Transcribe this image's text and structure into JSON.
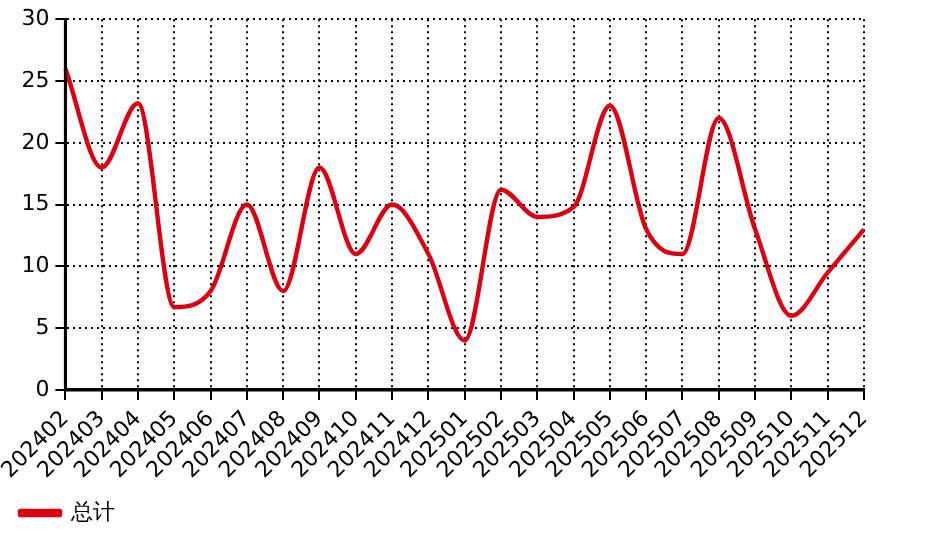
{
  "chart_data": {
    "type": "line",
    "categories": [
      "202402",
      "202403",
      "202404",
      "202405",
      "202406",
      "202407",
      "202408",
      "202409",
      "202410",
      "202411",
      "202412",
      "202501",
      "202502",
      "202503",
      "202504",
      "202505",
      "202506",
      "202507",
      "202508",
      "202509",
      "202510",
      "202511",
      "202512"
    ],
    "series": [
      {
        "name": "总计",
        "color": "#dd0011",
        "values": [
          26,
          18,
          23.2,
          6.7,
          8,
          15,
          8,
          18,
          11,
          15,
          11,
          4,
          16.2,
          14,
          14.8,
          23,
          13,
          11,
          22,
          13,
          6,
          9.5,
          13
        ]
      }
    ],
    "ylim": [
      0,
      30
    ],
    "yticks": [
      0,
      5,
      10,
      15,
      20,
      25,
      30
    ],
    "grid": true,
    "legend": "bottom left",
    "marker": "none",
    "line_style": "solid"
  }
}
